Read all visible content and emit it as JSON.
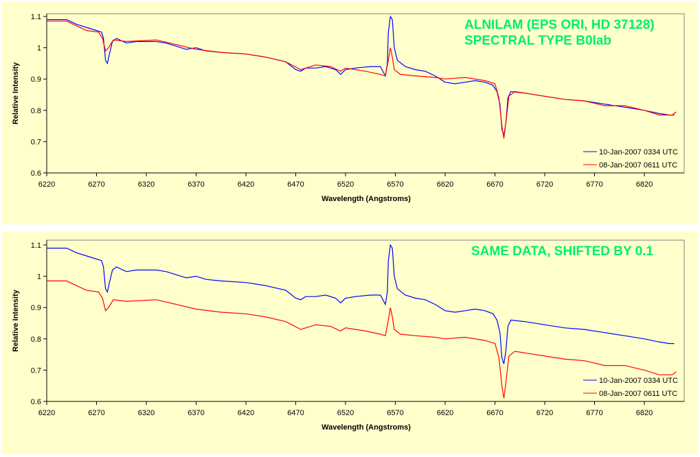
{
  "chart_data": [
    {
      "type": "line",
      "title_lines": [
        "ALNILAM (EPS ORI, HD 37128)",
        "SPECTRAL TYPE B0Iab"
      ],
      "xlabel": "Wavelength (Angstroms)",
      "ylabel": "Relative Intensity",
      "xlim": [
        6220,
        6865
      ],
      "ylim": [
        0.6,
        1.1
      ],
      "xticks": [
        "6220",
        "6270",
        "6320",
        "6370",
        "6420",
        "6470",
        "6520",
        "6570",
        "6620",
        "6670",
        "6720",
        "6770",
        "6820"
      ],
      "yticks": [
        "0.6",
        "0.7",
        "0.8",
        "0.9",
        "1",
        "1.1"
      ],
      "grid": false,
      "legend": "bottom-right",
      "background": "#FFFFCC",
      "series": [
        {
          "name": "10-Jan-2007 0334 UTC",
          "color": "#0000ff",
          "offset": 0,
          "x": [
            6220,
            6240,
            6250,
            6260,
            6270,
            6275,
            6277,
            6279,
            6281,
            6283,
            6286,
            6290,
            6300,
            6310,
            6320,
            6330,
            6340,
            6350,
            6360,
            6370,
            6380,
            6395,
            6420,
            6440,
            6460,
            6470,
            6475,
            6480,
            6490,
            6500,
            6510,
            6515,
            6520,
            6530,
            6545,
            6555,
            6560,
            6562,
            6563,
            6565,
            6567,
            6569,
            6572,
            6580,
            6590,
            6600,
            6610,
            6620,
            6630,
            6640,
            6650,
            6660,
            6668,
            6672,
            6675,
            6677,
            6679,
            6681,
            6683,
            6686,
            6700,
            6720,
            6740,
            6760,
            6780,
            6800,
            6820,
            6835,
            6845,
            6850
          ],
          "y": [
            1.09,
            1.09,
            1.075,
            1.065,
            1.055,
            1.05,
            1.03,
            0.96,
            0.95,
            0.98,
            1.02,
            1.03,
            1.015,
            1.02,
            1.02,
            1.02,
            1.015,
            1.005,
            0.995,
            1.0,
            0.99,
            0.985,
            0.98,
            0.97,
            0.955,
            0.93,
            0.925,
            0.935,
            0.935,
            0.94,
            0.93,
            0.915,
            0.93,
            0.935,
            0.94,
            0.94,
            0.91,
            0.95,
            1.05,
            1.1,
            1.09,
            1.0,
            0.96,
            0.94,
            0.93,
            0.925,
            0.91,
            0.89,
            0.885,
            0.89,
            0.895,
            0.89,
            0.88,
            0.86,
            0.82,
            0.74,
            0.72,
            0.76,
            0.84,
            0.86,
            0.855,
            0.845,
            0.835,
            0.83,
            0.82,
            0.81,
            0.8,
            0.79,
            0.785,
            0.785
          ]
        },
        {
          "name": "08-Jan-2007 0611 UTC",
          "color": "#ff0000",
          "offset": 0,
          "x": [
            6220,
            6240,
            6250,
            6260,
            6272,
            6276,
            6279,
            6282,
            6287,
            6300,
            6330,
            6350,
            6370,
            6395,
            6420,
            6440,
            6460,
            6475,
            6490,
            6505,
            6515,
            6520,
            6540,
            6555,
            6560,
            6563,
            6565,
            6567,
            6569,
            6575,
            6590,
            6610,
            6620,
            6640,
            6660,
            6670,
            6674,
            6677,
            6679,
            6681,
            6684,
            6690,
            6700,
            6720,
            6740,
            6760,
            6780,
            6800,
            6820,
            6835,
            6848,
            6852
          ],
          "y": [
            1.085,
            1.085,
            1.07,
            1.055,
            1.05,
            1.03,
            0.99,
            1.0,
            1.025,
            1.02,
            1.025,
            1.01,
            0.995,
            0.985,
            0.98,
            0.97,
            0.955,
            0.93,
            0.945,
            0.94,
            0.925,
            0.935,
            0.925,
            0.915,
            0.91,
            0.96,
            1.0,
            0.97,
            0.93,
            0.915,
            0.91,
            0.905,
            0.9,
            0.905,
            0.895,
            0.885,
            0.84,
            0.75,
            0.71,
            0.76,
            0.845,
            0.86,
            0.855,
            0.845,
            0.835,
            0.83,
            0.815,
            0.815,
            0.8,
            0.785,
            0.785,
            0.795
          ]
        }
      ]
    },
    {
      "type": "line",
      "title_lines": [
        "SAME DATA, SHIFTED BY 0.1"
      ],
      "xlabel": "Wavelength (Angstroms)",
      "ylabel": "Relative Intensity",
      "xlim": [
        6220,
        6865
      ],
      "ylim": [
        0.6,
        1.1
      ],
      "xticks": [
        "6220",
        "6270",
        "6320",
        "6370",
        "6420",
        "6470",
        "6520",
        "6570",
        "6620",
        "6670",
        "6720",
        "6770",
        "6820"
      ],
      "yticks": [
        "0.6",
        "0.7",
        "0.8",
        "0.9",
        "1",
        "1.1"
      ],
      "grid": false,
      "legend": "bottom-right",
      "background": "#FFFFCC",
      "series_from_chart": 0,
      "series_offsets": [
        0,
        -0.1
      ],
      "legend_entries": [
        "10-Jan-2007 0334 UTC",
        "08-Jan-2007 0611 UTC"
      ]
    }
  ]
}
